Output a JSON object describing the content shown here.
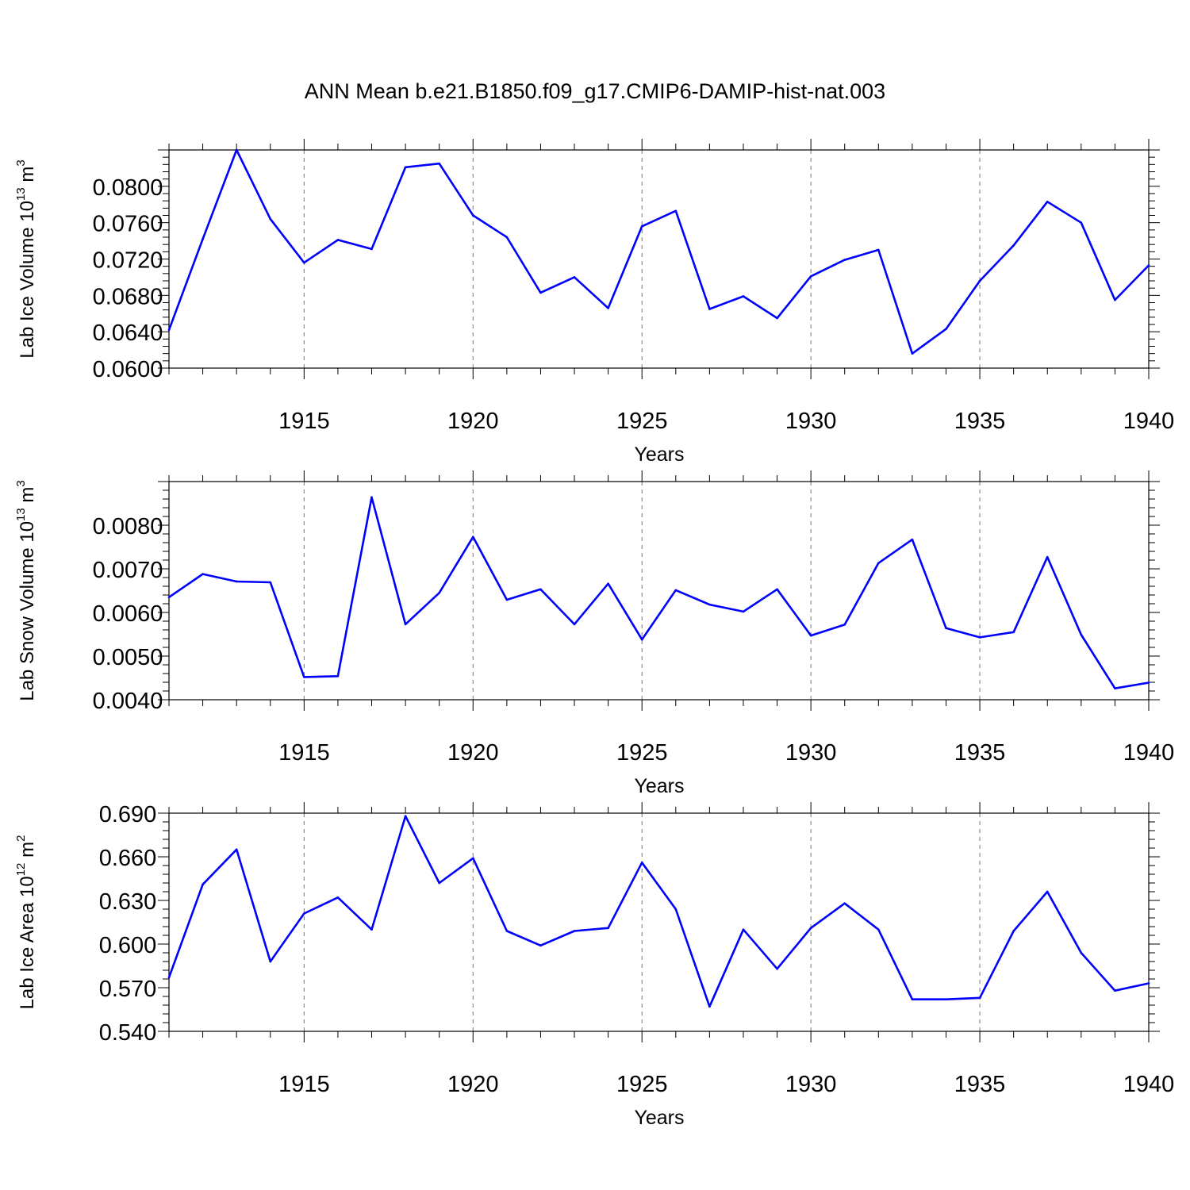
{
  "title": "ANN Mean b.e21.B1850.f09_g17.CMIP6-DAMIP-hist-nat.003",
  "colors": {
    "line": "#0000ff",
    "axis": "#000000",
    "grid": "#777777"
  },
  "chart_data": [
    {
      "type": "line",
      "ylabel": "Lab Ice Volume 10",
      "ylabel_exp": "13",
      "ylabel_unit": " m",
      "ylabel_unit_exp": "3",
      "xlabel": "Years",
      "xlim": [
        1911,
        1940
      ],
      "ylim": [
        0.06,
        0.084
      ],
      "yticks": [
        0.06,
        0.064,
        0.068,
        0.072,
        0.076,
        0.08
      ],
      "yticklabels": [
        "0.0600",
        "0.0640",
        "0.0680",
        "0.0720",
        "0.0760",
        "0.0800"
      ],
      "xticks": [
        1915,
        1920,
        1925,
        1930,
        1935,
        1940
      ],
      "xticklabels": [
        "1915",
        "1920",
        "1925",
        "1930",
        "1935",
        "1940"
      ],
      "grid": "dashed vertical lines at labeled years",
      "x": [
        1911,
        1912,
        1913,
        1914,
        1915,
        1916,
        1917,
        1918,
        1919,
        1920,
        1921,
        1922,
        1923,
        1924,
        1925,
        1926,
        1927,
        1928,
        1929,
        1930,
        1931,
        1932,
        1933,
        1934,
        1935,
        1936,
        1937,
        1938,
        1939,
        1940
      ],
      "series": [
        {
          "values": [
            0.0642,
            0.0742,
            0.084,
            0.0764,
            0.0716,
            0.0741,
            0.0731,
            0.0821,
            0.0825,
            0.0768,
            0.0744,
            0.0683,
            0.07,
            0.0666,
            0.0756,
            0.0773,
            0.0665,
            0.0679,
            0.0655,
            0.0701,
            0.0719,
            0.073,
            0.0616,
            0.0643,
            0.0696,
            0.0735,
            0.0783,
            0.076,
            0.0675,
            0.0713
          ]
        }
      ]
    },
    {
      "type": "line",
      "ylabel": "Lab Snow Volume 10",
      "ylabel_exp": "13",
      "ylabel_unit": " m",
      "ylabel_unit_exp": "3",
      "xlabel": "Years",
      "xlim": [
        1911,
        1940
      ],
      "ylim": [
        0.004,
        0.009
      ],
      "yticks": [
        0.004,
        0.005,
        0.006,
        0.007,
        0.008
      ],
      "yticklabels": [
        "0.0040",
        "0.0050",
        "0.0060",
        "0.0070",
        "0.0080"
      ],
      "xticks": [
        1915,
        1920,
        1925,
        1930,
        1935,
        1940
      ],
      "xticklabels": [
        "1915",
        "1920",
        "1925",
        "1930",
        "1935",
        "1940"
      ],
      "grid": "dashed vertical lines at labeled years",
      "x": [
        1911,
        1912,
        1913,
        1914,
        1915,
        1916,
        1917,
        1918,
        1919,
        1920,
        1921,
        1922,
        1923,
        1924,
        1925,
        1926,
        1927,
        1928,
        1929,
        1930,
        1931,
        1932,
        1933,
        1934,
        1935,
        1936,
        1937,
        1938,
        1939,
        1940
      ],
      "series": [
        {
          "values": [
            0.00635,
            0.00688,
            0.00671,
            0.00669,
            0.00452,
            0.00454,
            0.00864,
            0.00573,
            0.00645,
            0.00773,
            0.00629,
            0.00653,
            0.00573,
            0.00666,
            0.00538,
            0.00651,
            0.00618,
            0.00602,
            0.00653,
            0.00547,
            0.00572,
            0.00713,
            0.00767,
            0.00564,
            0.00543,
            0.00555,
            0.00727,
            0.00549,
            0.00426,
            0.00439
          ]
        }
      ]
    },
    {
      "type": "line",
      "ylabel": "Lab Ice Area 10",
      "ylabel_exp": "12",
      "ylabel_unit": " m",
      "ylabel_unit_exp": "2",
      "xlabel": "Years",
      "xlim": [
        1911,
        1940
      ],
      "ylim": [
        0.54,
        0.69
      ],
      "yticks": [
        0.54,
        0.57,
        0.6,
        0.63,
        0.66,
        0.69
      ],
      "yticklabels": [
        "0.540",
        "0.570",
        "0.600",
        "0.630",
        "0.660",
        "0.690"
      ],
      "xticks": [
        1915,
        1920,
        1925,
        1930,
        1935,
        1940
      ],
      "xticklabels": [
        "1915",
        "1920",
        "1925",
        "1930",
        "1935",
        "1940"
      ],
      "grid": "dashed vertical lines at labeled years",
      "x": [
        1911,
        1912,
        1913,
        1914,
        1915,
        1916,
        1917,
        1918,
        1919,
        1920,
        1921,
        1922,
        1923,
        1924,
        1925,
        1926,
        1927,
        1928,
        1929,
        1930,
        1931,
        1932,
        1933,
        1934,
        1935,
        1936,
        1937,
        1938,
        1939,
        1940
      ],
      "series": [
        {
          "values": [
            0.577,
            0.641,
            0.665,
            0.588,
            0.621,
            0.632,
            0.61,
            0.688,
            0.642,
            0.659,
            0.609,
            0.599,
            0.609,
            0.611,
            0.656,
            0.624,
            0.557,
            0.61,
            0.583,
            0.611,
            0.628,
            0.61,
            0.562,
            0.562,
            0.563,
            0.609,
            0.636,
            0.594,
            0.568,
            0.573
          ]
        }
      ]
    }
  ]
}
